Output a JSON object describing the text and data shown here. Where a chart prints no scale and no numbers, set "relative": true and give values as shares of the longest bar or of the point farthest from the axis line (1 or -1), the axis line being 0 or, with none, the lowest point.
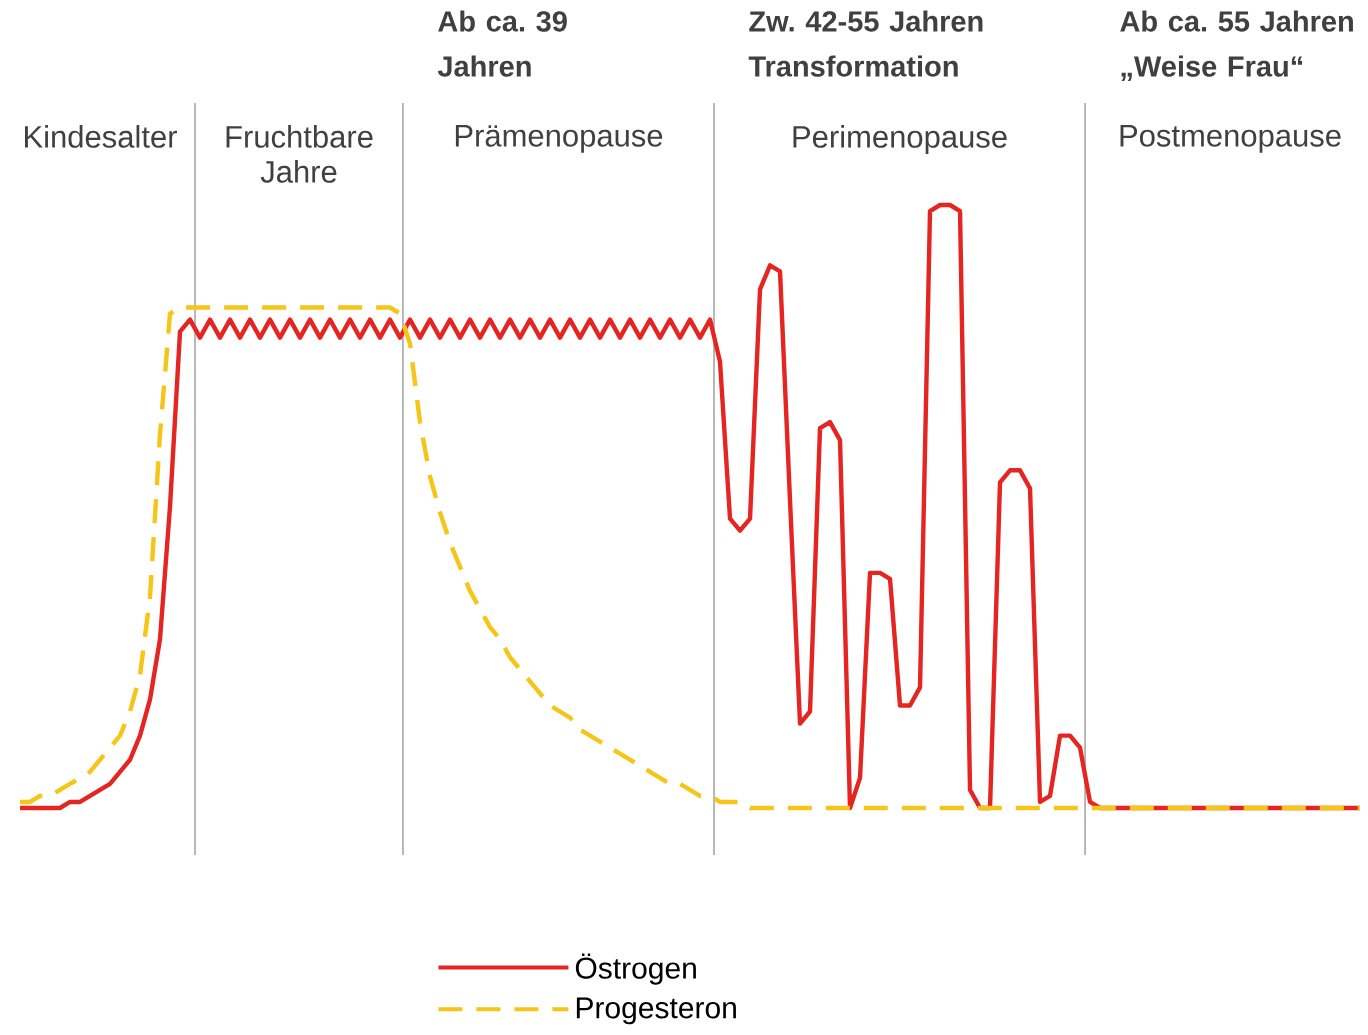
{
  "chart_data": {
    "type": "line",
    "relative": true,
    "legend": "bottom",
    "marker": "none",
    "categories": [
      null,
      null,
      null,
      null,
      null,
      null,
      null,
      null,
      null,
      null,
      null,
      null,
      null,
      null,
      null,
      null,
      null,
      null,
      null,
      null,
      null,
      null,
      null,
      null,
      null,
      null,
      null,
      null,
      null,
      null,
      null,
      null,
      null,
      null,
      null,
      null,
      null,
      null,
      null,
      null,
      null,
      null,
      null,
      null,
      null,
      null,
      null,
      null,
      null,
      null,
      null,
      null,
      null,
      null,
      null,
      null,
      null,
      null,
      null,
      null,
      null,
      null,
      null,
      null,
      null,
      null,
      null,
      null,
      null,
      null,
      null,
      null,
      null,
      null,
      null,
      null,
      null,
      null,
      null,
      null,
      null,
      null,
      null,
      null,
      null,
      null,
      null,
      null,
      null,
      null,
      null,
      null,
      null,
      null,
      null,
      null,
      null,
      null,
      null,
      null,
      null,
      null,
      null,
      null,
      null,
      null,
      null,
      null,
      null,
      null,
      null,
      null,
      null,
      null,
      null,
      null,
      null,
      null,
      null,
      null,
      null,
      null,
      null,
      null,
      null,
      null,
      null,
      null,
      null,
      null,
      null,
      null,
      null,
      null,
      null
    ],
    "series": [
      {
        "name": "Östrogen",
        "color": "#e52521",
        "line_style": "solid",
        "values": [
          0,
          0,
          0,
          0,
          0,
          0.01,
          0.01,
          0.02,
          0.03,
          0.04,
          0.06,
          0.08,
          0.12,
          0.18,
          0.28,
          0.5,
          0.79,
          0.81,
          0.78,
          0.81,
          0.78,
          0.81,
          0.78,
          0.81,
          0.78,
          0.81,
          0.78,
          0.81,
          0.78,
          0.81,
          0.78,
          0.81,
          0.78,
          0.81,
          0.78,
          0.81,
          0.78,
          0.81,
          0.78,
          0.81,
          0.78,
          0.81,
          0.78,
          0.81,
          0.78,
          0.81,
          0.78,
          0.81,
          0.78,
          0.81,
          0.78,
          0.81,
          0.78,
          0.81,
          0.78,
          0.81,
          0.78,
          0.81,
          0.78,
          0.81,
          0.78,
          0.81,
          0.78,
          0.81,
          0.78,
          0.81,
          0.78,
          0.81,
          0.78,
          0.81,
          0.74,
          0.48,
          0.46,
          0.48,
          0.86,
          0.9,
          0.89,
          0.51,
          0.14,
          0.16,
          0.63,
          0.64,
          0.61,
          0.0,
          0.05,
          0.39,
          0.39,
          0.38,
          0.17,
          0.17,
          0.2,
          0.99,
          1.0,
          1.0,
          0.99,
          0.03,
          0.0,
          0.0,
          0.54,
          0.56,
          0.56,
          0.53,
          0.01,
          0.02,
          0.12,
          0.12,
          0.1,
          0.01,
          0,
          0,
          0,
          0,
          0,
          0,
          0,
          0,
          0,
          0,
          0,
          0,
          0,
          0,
          0,
          0,
          0,
          0,
          0,
          0,
          0,
          0,
          0,
          0,
          0,
          0,
          0
        ]
      },
      {
        "name": "Progesteron",
        "color": "#f5c518",
        "line_style": "dashed",
        "values": [
          0.01,
          0.01,
          0.02,
          0.02,
          0.03,
          0.04,
          0.05,
          0.06,
          0.08,
          0.1,
          0.12,
          0.16,
          0.22,
          0.35,
          0.62,
          0.82,
          0.83,
          0.83,
          0.83,
          0.83,
          0.83,
          0.83,
          0.83,
          0.83,
          0.83,
          0.83,
          0.83,
          0.83,
          0.83,
          0.83,
          0.83,
          0.83,
          0.83,
          0.83,
          0.83,
          0.83,
          0.83,
          0.83,
          0.82,
          0.77,
          0.64,
          0.55,
          0.49,
          0.44,
          0.4,
          0.36,
          0.33,
          0.3,
          0.28,
          0.25,
          0.23,
          0.21,
          0.19,
          0.17,
          0.16,
          0.15,
          0.13,
          0.12,
          0.11,
          0.1,
          0.09,
          0.08,
          0.07,
          0.06,
          0.05,
          0.04,
          0.04,
          0.03,
          0.02,
          0.02,
          0.01,
          0.01,
          0.01,
          0.0,
          0,
          0,
          0,
          0,
          0,
          0,
          0,
          0,
          0,
          0,
          0,
          0,
          0,
          0,
          0,
          0,
          0,
          0,
          0,
          0,
          0,
          0,
          0,
          0,
          0,
          0,
          0,
          0,
          0,
          0,
          0,
          0,
          0,
          0,
          0,
          0,
          0,
          0,
          0,
          0,
          0,
          0,
          0,
          0,
          0,
          0,
          0,
          0,
          0,
          0,
          0,
          0,
          0,
          0,
          0,
          0,
          0,
          0,
          0,
          0,
          0
        ]
      }
    ],
    "annotations": [
      "Ab ca. 39 Jahren",
      "Zw. 42-55 Jahren Transformation",
      "Ab ca. 55 Jahren „Weise Frau“",
      "Kindesalter",
      "Fruchtbare Jahre",
      "Prämenopause",
      "Perimenopause",
      "Postmenopause"
    ]
  }
}
